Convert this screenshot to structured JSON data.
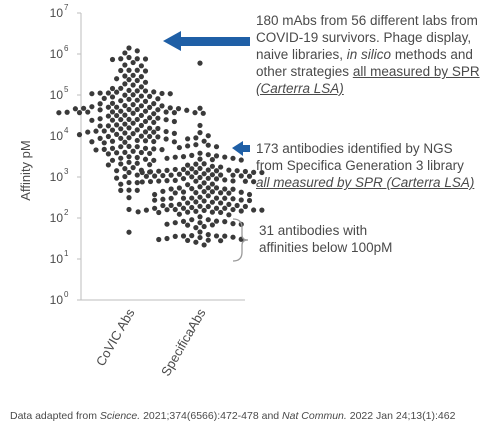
{
  "chart_data": {
    "type": "scatter",
    "subtype": "beeswarm",
    "y_scale": "log",
    "ylabel": "Affinity pM",
    "ylim": [
      1,
      10000000
    ],
    "y_tick_labels": [
      {
        "base": "10",
        "exp": "0"
      },
      {
        "base": "10",
        "exp": "1"
      },
      {
        "base": "10",
        "exp": "2"
      },
      {
        "base": "10",
        "exp": "3"
      },
      {
        "base": "10",
        "exp": "4"
      },
      {
        "base": "10",
        "exp": "5"
      },
      {
        "base": "10",
        "exp": "6"
      },
      {
        "base": "10",
        "exp": "7"
      }
    ],
    "categories": [
      "CoVIC Abs",
      "SpecificaAbs"
    ],
    "series": [
      {
        "category": "CoVIC Abs",
        "count": 180,
        "min": 45,
        "max": 1400000,
        "median": 30000,
        "log_mean": 4.4,
        "log_sd": 0.95
      },
      {
        "category": "SpecificaAbs",
        "count": 173,
        "min": 22,
        "max": 600000,
        "median": 500,
        "log_mean": 2.65,
        "log_sd": 0.7,
        "below_100pM_count": 31
      }
    ],
    "point_color": "#3a3a3a",
    "grid": false,
    "annotations": [
      {
        "target": "CoVIC Abs",
        "arrow": "large-left",
        "lines": [
          [
            {
              "text": "180 mAbs from 56 different labs from"
            }
          ],
          [
            {
              "text": "COVID-19 survivors. Phage display,"
            }
          ],
          [
            {
              "text": "naive libraries, "
            },
            {
              "text": "in silico",
              "style": "italic"
            },
            {
              "text": " methods and"
            }
          ],
          [
            {
              "text": "other strategies "
            },
            {
              "text": "all measured by SPR",
              "style": "underline"
            }
          ],
          [
            {
              "text": "(Carterra LSA)",
              "style": "italic-underline"
            }
          ]
        ]
      },
      {
        "target": "SpecificaAbs",
        "arrow": "small-left",
        "lines": [
          [
            {
              "text": "173 antibodies identified by NGS"
            }
          ],
          [
            {
              "text": "from Specifica Generation 3 library"
            }
          ],
          [
            {
              "text": "all measured by SPR (Carterra LSA)",
              "style": "italic-underline"
            }
          ]
        ]
      },
      {
        "target": "SpecificaAbs-low",
        "arrow": "brace",
        "lines": [
          [
            {
              "text": "31 antibodies with"
            }
          ],
          [
            {
              "text": "affinities below 100pM"
            }
          ]
        ]
      }
    ],
    "accent_color": "#1f5fa6",
    "source_note": [
      {
        "text": "Data adapted from "
      },
      {
        "text": "Science.",
        "style": "italic"
      },
      {
        "text": " 2021;374(6566):472-478 and "
      },
      {
        "text": "Nat Commun.",
        "style": "italic"
      },
      {
        "text": " 2022 Jan 24;13(1):462"
      }
    ]
  }
}
